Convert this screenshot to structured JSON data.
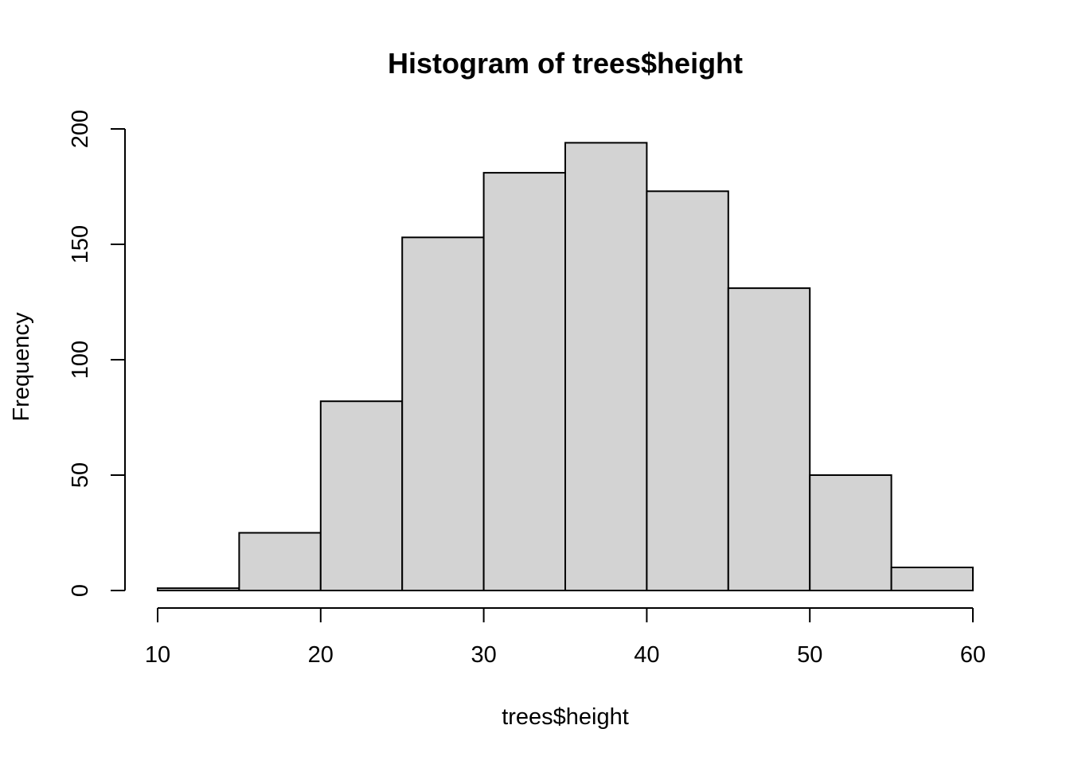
{
  "chart_data": {
    "type": "bar",
    "subtype": "histogram",
    "title": "Histogram of trees$height",
    "xlabel": "trees$height",
    "ylabel": "Frequency",
    "bins": [
      {
        "x0": 10,
        "x1": 15,
        "count": 1
      },
      {
        "x0": 15,
        "x1": 20,
        "count": 25
      },
      {
        "x0": 20,
        "x1": 25,
        "count": 82
      },
      {
        "x0": 25,
        "x1": 30,
        "count": 153
      },
      {
        "x0": 30,
        "x1": 35,
        "count": 181
      },
      {
        "x0": 35,
        "x1": 40,
        "count": 194
      },
      {
        "x0": 40,
        "x1": 45,
        "count": 173
      },
      {
        "x0": 45,
        "x1": 50,
        "count": 131
      },
      {
        "x0": 50,
        "x1": 55,
        "count": 50
      },
      {
        "x0": 55,
        "x1": 60,
        "count": 10
      }
    ],
    "xlim": [
      10,
      60
    ],
    "ylim": [
      0,
      200
    ],
    "x_ticks": [
      "10",
      "20",
      "30",
      "40",
      "50",
      "60"
    ],
    "y_ticks": [
      "0",
      "50",
      "100",
      "150",
      "200"
    ],
    "bar_fill": "#d3d3d3",
    "bar_stroke": "#000000",
    "grid": false,
    "legend": "none"
  }
}
